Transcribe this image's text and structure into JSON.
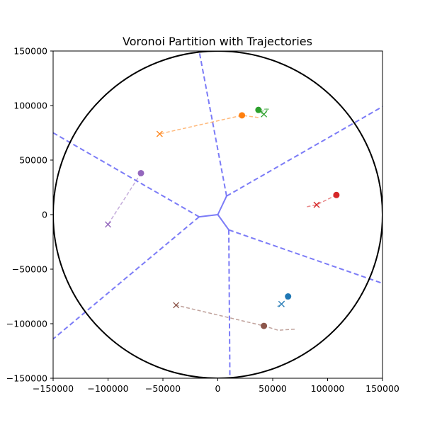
{
  "chart_data": {
    "type": "scatter",
    "title": "Voronoi Partition with Trajectories",
    "xlabel": "",
    "ylabel": "",
    "xlim": [
      -150000,
      150000
    ],
    "ylim": [
      -150000,
      150000
    ],
    "x_ticks": [
      -150000,
      -100000,
      -50000,
      0,
      50000,
      100000,
      150000
    ],
    "y_ticks": [
      -150000,
      -100000,
      -50000,
      0,
      50000,
      100000,
      150000
    ],
    "x_tick_labels": [
      "−150000",
      "−100000",
      "−50000",
      "0",
      "50000",
      "100000",
      "150000"
    ],
    "y_tick_labels": [
      "−150000",
      "−100000",
      "−50000",
      "0",
      "50000",
      "100000",
      "150000"
    ],
    "grid": false,
    "boundary_circle": {
      "center": [
        0,
        0
      ],
      "radius": 150000,
      "color": "#000000"
    },
    "voronoi": {
      "color": "#7b7bf7",
      "vertices": [
        [
          0,
          0
        ],
        [
          8000,
          17000
        ],
        [
          10000,
          -14000
        ],
        [
          -17000,
          -2000
        ]
      ],
      "inner_edges": [
        [
          0,
          1
        ],
        [
          0,
          2
        ],
        [
          0,
          3
        ]
      ],
      "rays": [
        {
          "from": 1,
          "to": [
            -17000,
            150000
          ]
        },
        {
          "from": 1,
          "to": [
            150000,
            99000
          ]
        },
        {
          "from": 2,
          "to": [
            150000,
            -63000
          ]
        },
        {
          "from": 2,
          "to": [
            11000,
            -150000
          ]
        },
        {
          "from": 3,
          "to": [
            -150000,
            75000
          ]
        },
        {
          "from": 3,
          "to": [
            -150000,
            -114000
          ]
        }
      ]
    },
    "series": [
      {
        "color": "#1f77b4",
        "start": [
          64000,
          -75000
        ],
        "end": [
          58000,
          -82000
        ],
        "path": [
          [
            64000,
            -75000
          ],
          [
            61000,
            -79000
          ],
          [
            58000,
            -82000
          ],
          [
            53000,
            -85000
          ]
        ]
      },
      {
        "color": "#ff7f0e",
        "start": [
          22000,
          91000
        ],
        "end": [
          -53000,
          74000
        ],
        "path": [
          [
            37000,
            89000
          ],
          [
            22000,
            91000
          ],
          [
            -53000,
            74000
          ]
        ]
      },
      {
        "color": "#2ca02c",
        "start": [
          37000,
          96000
        ],
        "end": [
          42000,
          92000
        ],
        "path": [
          [
            37000,
            96000
          ],
          [
            46000,
            97000
          ],
          [
            42000,
            92000
          ],
          [
            38000,
            94000
          ],
          [
            47000,
            97000
          ]
        ]
      },
      {
        "color": "#d62728",
        "start": [
          108000,
          18000
        ],
        "end": [
          90000,
          9000
        ],
        "path": [
          [
            108000,
            18000
          ],
          [
            100000,
            14000
          ],
          [
            90000,
            9000
          ],
          [
            80000,
            7000
          ]
        ]
      },
      {
        "color": "#9467bd",
        "start": [
          -70000,
          38000
        ],
        "end": [
          -100000,
          -9000
        ],
        "path": [
          [
            -70000,
            38000
          ],
          [
            -100000,
            -9000
          ]
        ]
      },
      {
        "color": "#8c564b",
        "start": [
          42000,
          -102000
        ],
        "end": [
          -38000,
          -83000
        ],
        "path": [
          [
            70000,
            -105000
          ],
          [
            55000,
            -106000
          ],
          [
            42000,
            -102000
          ],
          [
            -38000,
            -83000
          ]
        ]
      }
    ]
  }
}
